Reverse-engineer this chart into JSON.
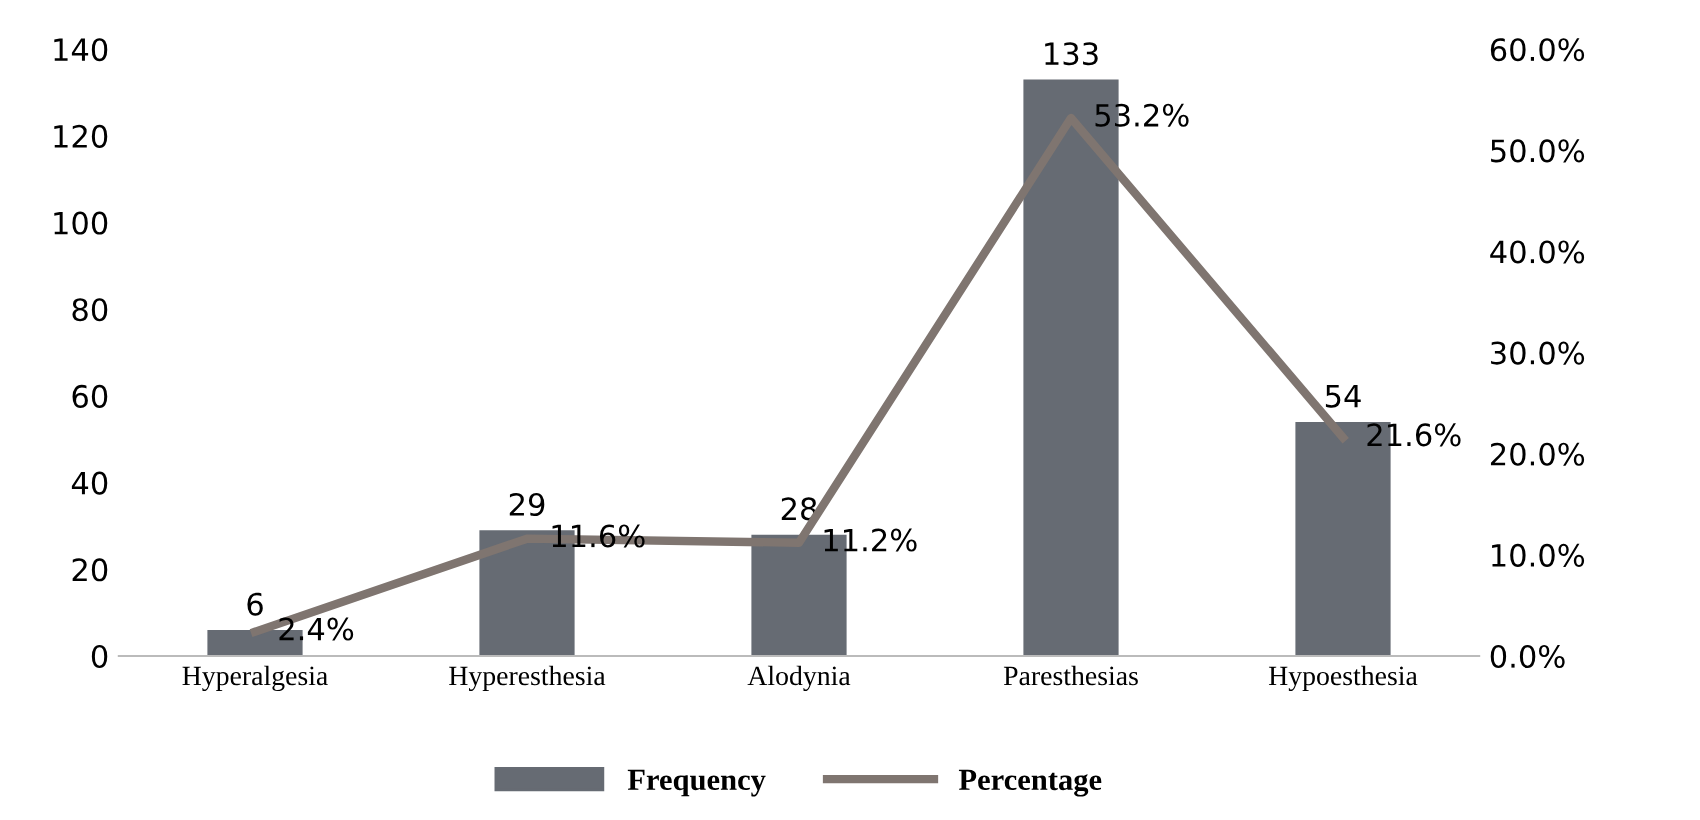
{
  "chart_data": {
    "type": "bar",
    "categories": [
      "Hyperalgesia",
      "Hyperesthesia",
      "Alodynia",
      "Paresthesias",
      "Hypoesthesia"
    ],
    "series": [
      {
        "name": "Frequency",
        "color": "#666b73",
        "values": [
          6,
          29,
          28,
          133,
          54
        ],
        "value_labels": [
          "6",
          "29",
          "28",
          "133",
          "54"
        ]
      },
      {
        "name": "Percentage",
        "type": "line",
        "axis": "y2",
        "color": "#7f7570",
        "values": [
          2.4,
          11.6,
          11.2,
          53.2,
          21.6
        ],
        "value_labels": [
          "2.4%",
          "11.6%",
          "11.2%",
          "53.2%",
          "21.6%"
        ]
      }
    ],
    "ylim": [
      0,
      140
    ],
    "yticks": [
      0,
      20,
      40,
      60,
      80,
      100,
      120,
      140
    ],
    "y2lim": [
      0,
      60
    ],
    "y2ticks": [
      {
        "value": 0,
        "label": "0.0%"
      },
      {
        "value": 10,
        "label": "10.0%"
      },
      {
        "value": 20,
        "label": "20.0%"
      },
      {
        "value": 30,
        "label": "30.0%"
      },
      {
        "value": 40,
        "label": "40.0%"
      },
      {
        "value": 50,
        "label": "50.0%"
      },
      {
        "value": 60,
        "label": "60.0%"
      }
    ],
    "legend": "bottom",
    "grid": false,
    "marker": "none",
    "line_style": "solid"
  }
}
